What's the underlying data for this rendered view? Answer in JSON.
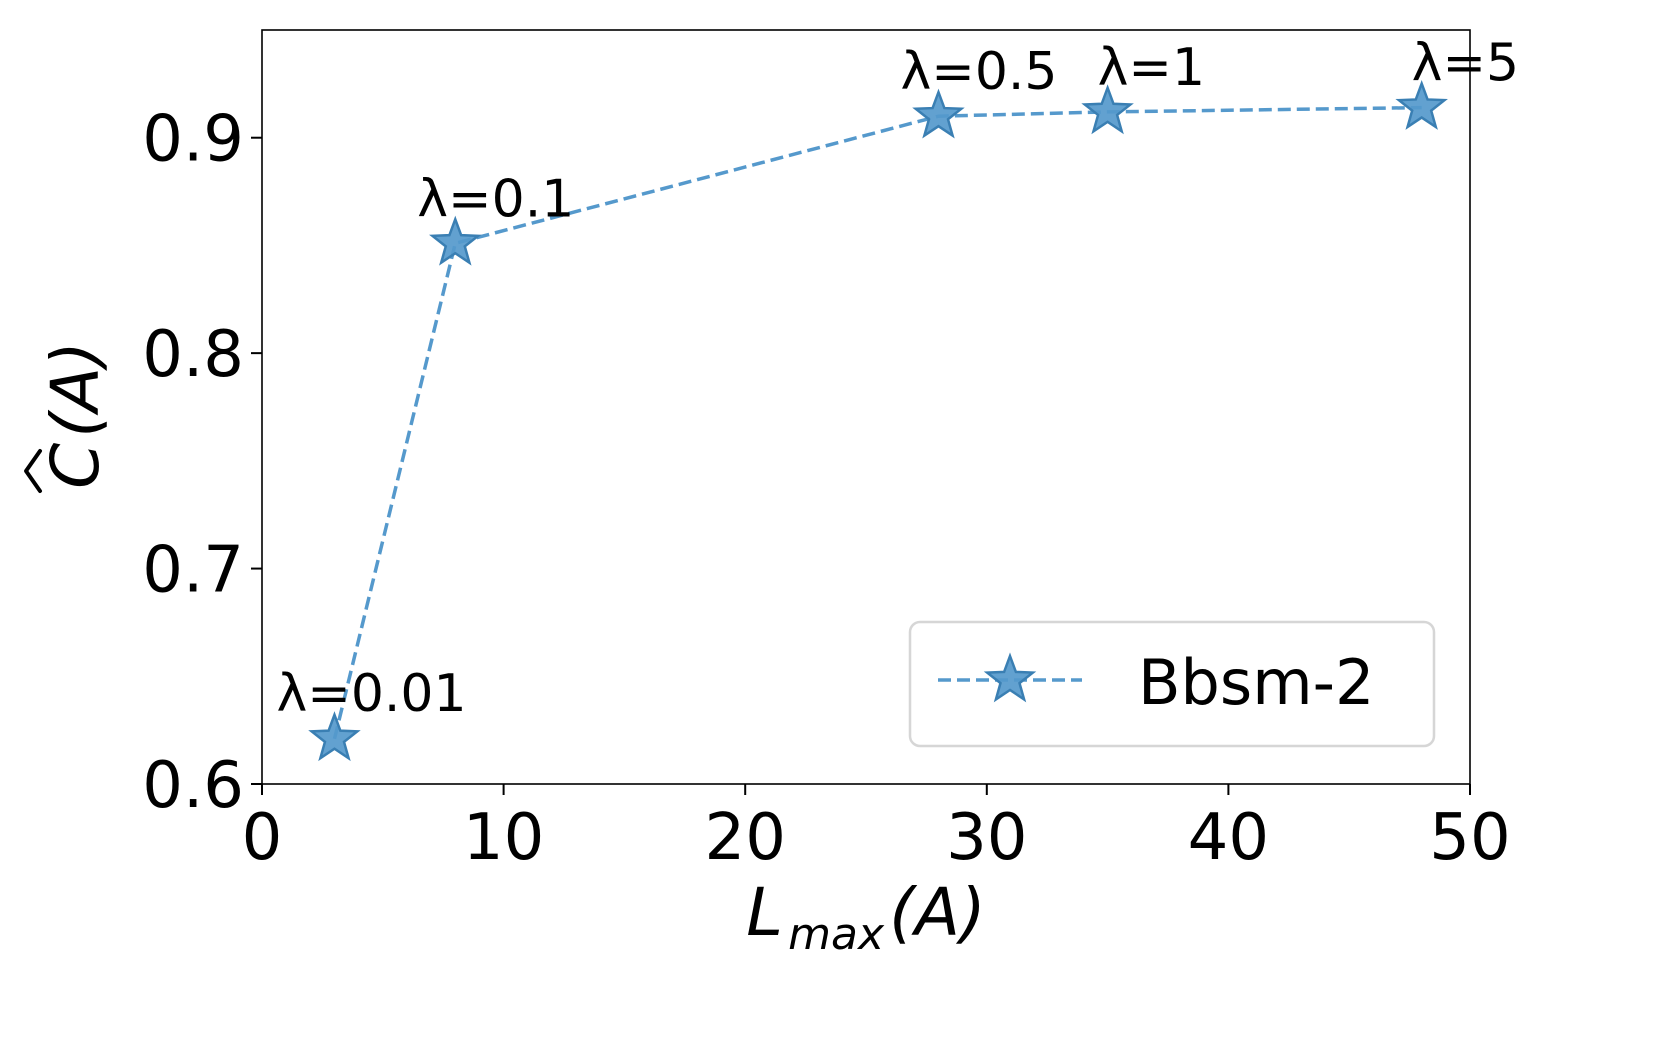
{
  "chart_data": {
    "type": "line",
    "x": [
      3,
      8,
      28,
      35,
      48
    ],
    "series": [
      {
        "name": "Bbsm-2",
        "values": [
          0.621,
          0.851,
          0.91,
          0.912,
          0.914
        ],
        "color": "#5599cc",
        "line_style": "dashed",
        "marker": "star"
      }
    ],
    "annotations": [
      "λ=0.01",
      "λ=0.1",
      "λ=0.5",
      "λ=1",
      "λ=5"
    ],
    "xlabel": {
      "main": "L",
      "sub": "max",
      "tail": "(A)"
    },
    "ylabel": {
      "main": "C",
      "tail": "(A)",
      "accent": "hat"
    },
    "xlim": [
      0,
      50
    ],
    "ylim": [
      0.6,
      0.95
    ],
    "xticks": [
      0,
      10,
      20,
      30,
      40,
      50
    ],
    "yticks": [
      0.6,
      0.7,
      0.8,
      0.9
    ],
    "xtick_labels": [
      "0",
      "10",
      "20",
      "30",
      "40",
      "50"
    ],
    "ytick_labels": [
      "0.6",
      "0.7",
      "0.8",
      "0.9"
    ],
    "grid": false,
    "legend_position": "bottom-right"
  }
}
